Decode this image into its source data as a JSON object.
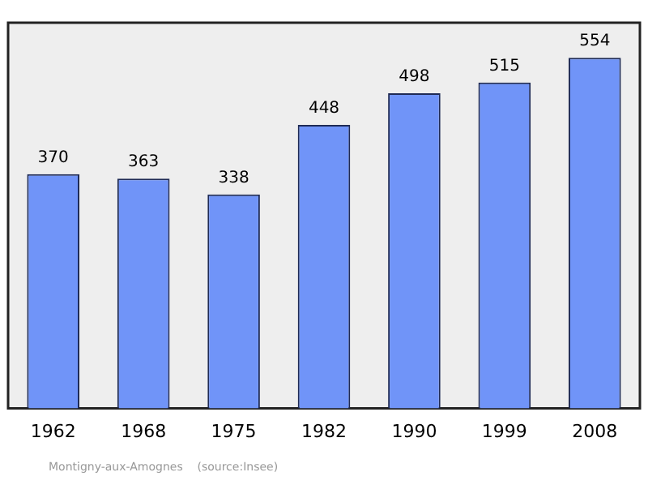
{
  "chart_data": {
    "type": "bar",
    "categories": [
      "1962",
      "1968",
      "1975",
      "1982",
      "1990",
      "1999",
      "2008"
    ],
    "values": [
      370,
      363,
      338,
      448,
      498,
      515,
      554
    ],
    "color": "#7094f8",
    "data_labels": true,
    "annotations": [
      "Montigny-aux-Amognes    (source:Insee)"
    ]
  }
}
